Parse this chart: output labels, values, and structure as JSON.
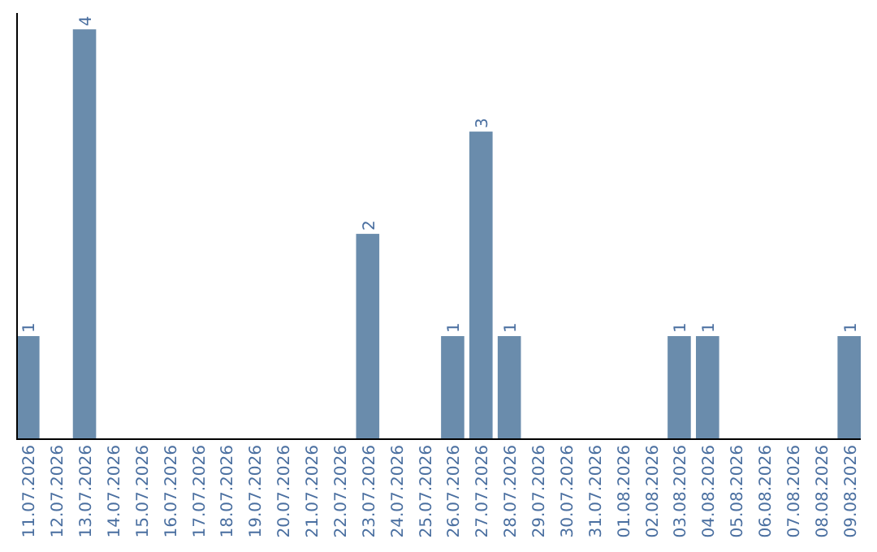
{
  "chart_data": {
    "type": "bar",
    "categories": [
      "11.07.2026",
      "12.07.2026",
      "13.07.2026",
      "14.07.2026",
      "15.07.2026",
      "16.07.2026",
      "17.07.2026",
      "18.07.2026",
      "19.07.2026",
      "20.07.2026",
      "21.07.2026",
      "22.07.2026",
      "23.07.2026",
      "24.07.2026",
      "25.07.2026",
      "26.07.2026",
      "27.07.2026",
      "28.07.2026",
      "29.07.2026",
      "30.07.2026",
      "31.07.2026",
      "01.08.2026",
      "02.08.2026",
      "03.08.2026",
      "04.08.2026",
      "05.08.2026",
      "06.08.2026",
      "07.08.2026",
      "08.08.2026",
      "09.08.2026"
    ],
    "values": [
      1,
      0,
      4,
      0,
      0,
      0,
      0,
      0,
      0,
      0,
      0,
      0,
      2,
      0,
      0,
      1,
      3,
      1,
      0,
      0,
      0,
      0,
      0,
      1,
      1,
      0,
      0,
      0,
      0,
      1
    ],
    "value_labels": [
      "1",
      null,
      "4",
      null,
      null,
      null,
      null,
      null,
      null,
      null,
      null,
      null,
      "2",
      null,
      null,
      "1",
      "3",
      "1",
      null,
      null,
      null,
      null,
      null,
      "1",
      "1",
      null,
      null,
      null,
      null,
      "1"
    ],
    "color": "#6a8cac",
    "grid": false,
    "tick_labels": "x"
  }
}
